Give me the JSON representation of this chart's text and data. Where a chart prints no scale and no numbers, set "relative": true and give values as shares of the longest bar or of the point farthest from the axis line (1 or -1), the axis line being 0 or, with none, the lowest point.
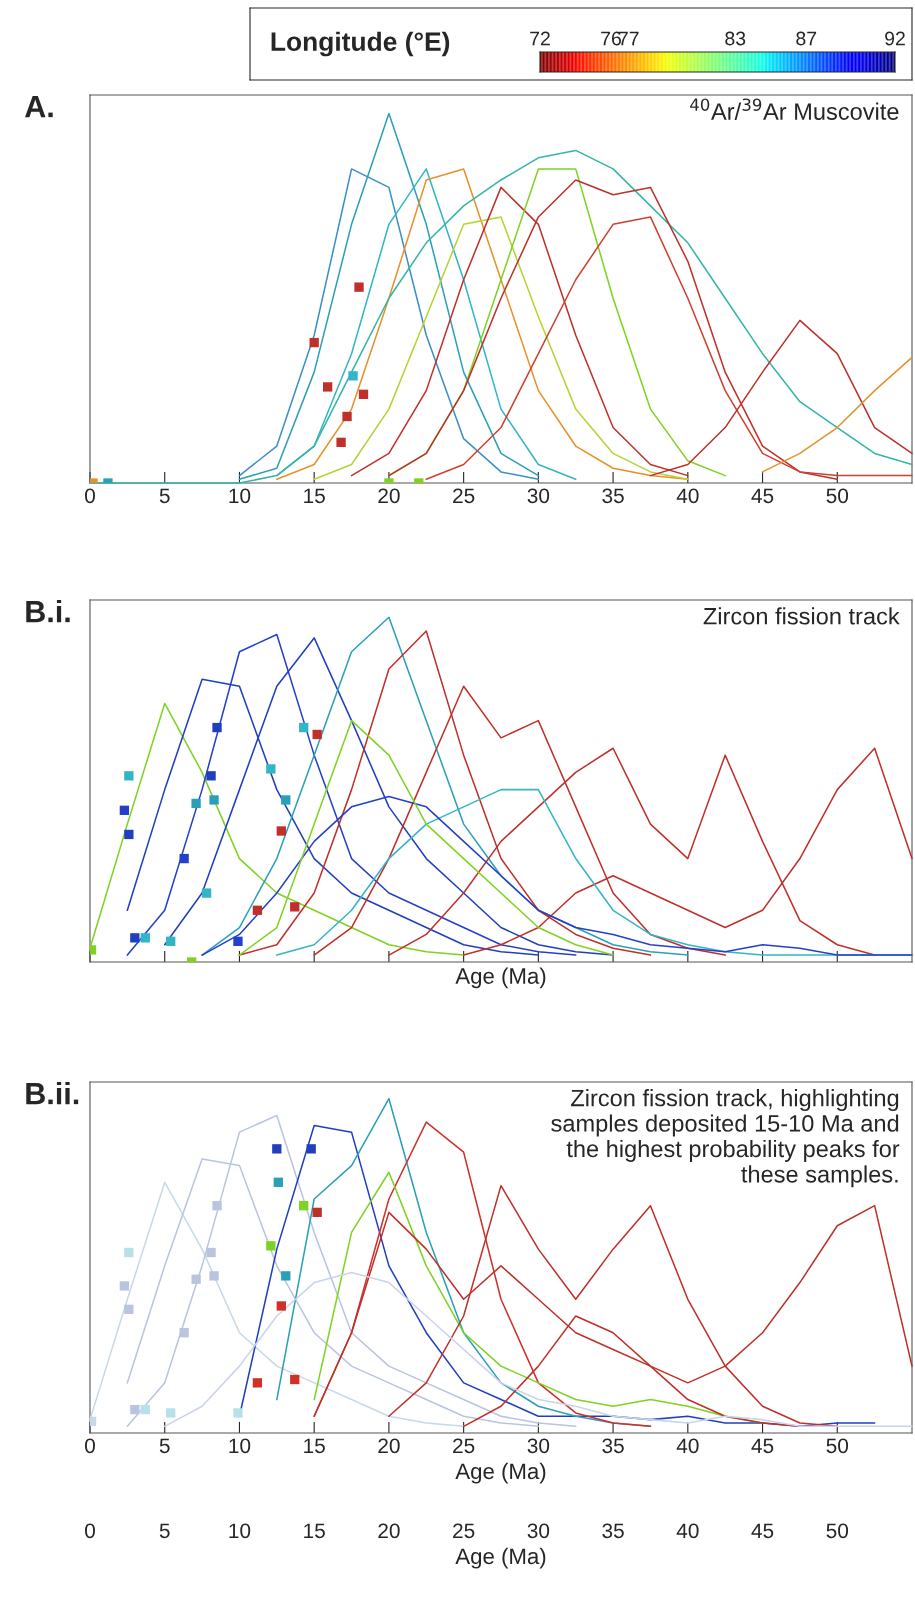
{
  "chart_data": [
    {
      "type": "line",
      "title": "A.",
      "annotations": [
        "$^{40}$Ar/$^{39}$Ar Muscovite"
      ],
      "relative": true,
      "tick_labels": "x",
      "xlim": [
        0,
        55
      ],
      "xticks": [
        0,
        5,
        10,
        15,
        20,
        25,
        30,
        35,
        40,
        45,
        50
      ],
      "clabel": "Longitude (°E)",
      "clim": [
        72,
        92
      ],
      "cticks": [
        72,
        76,
        77,
        83,
        87,
        92
      ],
      "x": [
        0,
        2.5,
        5,
        7.5,
        10,
        12.5,
        15,
        17.5,
        20,
        22.5,
        25,
        27.5,
        30,
        32.5,
        35,
        37.5,
        40,
        42.5,
        45,
        47.5,
        50,
        52.5,
        55
      ],
      "series": [
        {
          "color": "#2aa0b8",
          "values": [
            null,
            null,
            null,
            null,
            0.01,
            0.04,
            0.3,
            0.7,
            1.0,
            0.7,
            0.3,
            0.08,
            0.02,
            null,
            null,
            null,
            null,
            null,
            null,
            null,
            null,
            null,
            null
          ]
        },
        {
          "color": "#3b8fc4",
          "values": [
            null,
            null,
            null,
            null,
            0.02,
            0.1,
            0.4,
            0.85,
            0.8,
            0.4,
            0.12,
            0.03,
            0.01,
            null,
            null,
            null,
            null,
            null,
            null,
            null,
            null,
            null,
            null
          ]
        },
        {
          "color": "#33b5c8",
          "values": [
            null,
            null,
            null,
            null,
            null,
            0.02,
            0.1,
            0.35,
            0.7,
            0.85,
            0.55,
            0.2,
            0.05,
            0.01,
            null,
            null,
            null,
            null,
            null,
            null,
            null,
            null,
            null
          ]
        },
        {
          "color": "#e8902a",
          "values": [
            null,
            null,
            null,
            null,
            null,
            0.01,
            0.05,
            0.2,
            0.5,
            0.82,
            0.85,
            0.55,
            0.25,
            0.1,
            0.04,
            0.02,
            0.01,
            null,
            null,
            null,
            null,
            null,
            null
          ]
        },
        {
          "color": "#b5d334",
          "values": [
            null,
            null,
            null,
            null,
            null,
            null,
            0.01,
            0.05,
            0.2,
            0.45,
            0.7,
            0.72,
            0.45,
            0.2,
            0.08,
            0.03,
            0.01,
            null,
            null,
            null,
            null,
            null,
            null
          ]
        },
        {
          "color": "#c0302a",
          "values": [
            null,
            null,
            null,
            null,
            null,
            null,
            null,
            0.02,
            0.08,
            0.25,
            0.55,
            0.8,
            0.7,
            0.4,
            0.15,
            0.05,
            0.02,
            null,
            null,
            null,
            null,
            null,
            null
          ]
        },
        {
          "color": "#7ed321",
          "values": [
            null,
            null,
            null,
            null,
            null,
            null,
            null,
            null,
            0.02,
            0.08,
            0.25,
            0.55,
            0.85,
            0.85,
            0.5,
            0.2,
            0.06,
            0.02,
            null,
            null,
            null,
            null,
            null
          ]
        },
        {
          "color": "#33b5a8",
          "values": [
            0,
            0,
            0,
            0,
            0,
            0.02,
            0.1,
            0.3,
            0.5,
            0.65,
            0.75,
            0.82,
            0.88,
            0.9,
            0.85,
            0.75,
            0.65,
            0.5,
            0.35,
            0.22,
            0.15,
            0.08,
            0.05
          ]
        },
        {
          "color": "#c0302a",
          "values": [
            null,
            null,
            null,
            null,
            null,
            null,
            null,
            null,
            0.02,
            0.08,
            0.25,
            0.5,
            0.72,
            0.82,
            0.78,
            0.8,
            0.6,
            0.3,
            0.1,
            0.03,
            0.01,
            null,
            null
          ]
        },
        {
          "color": "#d0402f",
          "values": [
            null,
            null,
            null,
            null,
            null,
            null,
            null,
            null,
            null,
            0.01,
            0.05,
            0.15,
            0.35,
            0.55,
            0.7,
            0.72,
            0.5,
            0.25,
            0.08,
            0.03,
            0.02,
            0.02,
            0.02
          ]
        },
        {
          "color": "#c0302a",
          "values": [
            null,
            null,
            null,
            null,
            null,
            null,
            null,
            null,
            null,
            null,
            null,
            null,
            null,
            null,
            null,
            0.02,
            0.05,
            0.15,
            0.3,
            0.44,
            0.35,
            0.15,
            0.08
          ]
        },
        {
          "color": "#e8902a",
          "values": [
            null,
            null,
            null,
            null,
            null,
            null,
            null,
            null,
            null,
            null,
            null,
            null,
            null,
            null,
            null,
            null,
            null,
            null,
            0.03,
            0.08,
            0.15,
            0.25,
            0.34
          ]
        },
        {
          "type": "scatter",
          "marker": "square",
          "x": [
            0.2,
            1.2,
            15,
            15.9,
            16.8,
            18,
            18.3,
            17.2,
            17.6,
            20,
            22
          ],
          "values": [
            0,
            0,
            0.38,
            0.26,
            0.11,
            0.53,
            0.24,
            0.18,
            0.29,
            0,
            0
          ],
          "colors": [
            "#e8902a",
            "#2aa0b8",
            "#c0302a",
            "#c0302a",
            "#c0302a",
            "#c0302a",
            "#c0302a",
            "#c0302a",
            "#33b5c8",
            "#7ed321",
            "#7ed321"
          ]
        }
      ]
    },
    {
      "type": "line",
      "title": "B.i.",
      "annotations": [
        "Zircon fission track"
      ],
      "relative": true,
      "tick_labels": false,
      "xlabel": "Age (Ma)",
      "xlim": [
        0,
        55
      ],
      "xticks": [
        {
          "value": 0,
          "label": null
        },
        {
          "value": 5,
          "label": null
        },
        {
          "value": 10,
          "label": null
        },
        {
          "value": 15,
          "label": null
        },
        {
          "value": 20,
          "label": null
        },
        {
          "value": 25,
          "label": null
        },
        {
          "value": 30,
          "label": null
        },
        {
          "value": 35,
          "label": null
        },
        {
          "value": 40,
          "label": null
        },
        {
          "value": 45,
          "label": null
        },
        {
          "value": 50,
          "label": null
        }
      ],
      "x": [
        0,
        2.5,
        5,
        7.5,
        10,
        12.5,
        15,
        17.5,
        20,
        22.5,
        25,
        27.5,
        30,
        32.5,
        35,
        37.5,
        40,
        42.5,
        45,
        47.5,
        50,
        52.5,
        55
      ],
      "series": [
        {
          "color": "#7ed321",
          "values": [
            0.04,
            0.4,
            0.75,
            0.55,
            0.3,
            0.2,
            0.15,
            0.1,
            0.05,
            0.03,
            0.02,
            null,
            null,
            null,
            null,
            null,
            null,
            null,
            null,
            null,
            null,
            null,
            null
          ]
        },
        {
          "color": "#1f3fbf",
          "values": [
            null,
            0.15,
            0.5,
            0.82,
            0.8,
            0.5,
            0.3,
            0.2,
            0.15,
            0.1,
            0.05,
            0.03,
            0.02,
            null,
            null,
            null,
            null,
            null,
            null,
            null,
            null,
            null,
            null
          ]
        },
        {
          "color": "#2540c8",
          "values": [
            null,
            0.02,
            0.15,
            0.5,
            0.9,
            0.95,
            0.6,
            0.3,
            0.2,
            0.15,
            0.1,
            0.05,
            0.03,
            0.02,
            null,
            null,
            null,
            null,
            null,
            null,
            null,
            null,
            null
          ]
        },
        {
          "color": "#1f3fbf",
          "values": [
            null,
            null,
            0.05,
            0.2,
            0.5,
            0.8,
            0.94,
            0.7,
            0.45,
            0.3,
            0.2,
            0.1,
            0.05,
            0.03,
            0.02,
            null,
            null,
            null,
            null,
            null,
            null,
            null,
            null
          ]
        },
        {
          "color": "#2aa0b8",
          "values": [
            null,
            null,
            null,
            0.02,
            0.1,
            0.3,
            0.6,
            0.9,
            1.0,
            0.7,
            0.4,
            0.25,
            0.15,
            0.1,
            0.05,
            0.03,
            0.02,
            null,
            null,
            null,
            null,
            null,
            null
          ]
        },
        {
          "color": "#c0302a",
          "values": [
            null,
            null,
            null,
            null,
            0.02,
            0.05,
            0.2,
            0.5,
            0.85,
            0.96,
            0.6,
            0.3,
            0.15,
            0.08,
            0.04,
            0.02,
            null,
            null,
            null,
            null,
            null,
            null,
            null
          ]
        },
        {
          "color": "#c0302a",
          "values": [
            null,
            null,
            null,
            null,
            null,
            null,
            0.02,
            0.1,
            0.3,
            0.55,
            0.8,
            0.65,
            0.7,
            0.45,
            0.2,
            0.08,
            0.04,
            0.02,
            null,
            null,
            null,
            null,
            null
          ]
        },
        {
          "color": "#c0302a",
          "values": [
            null,
            null,
            null,
            null,
            null,
            null,
            null,
            null,
            0.02,
            0.08,
            0.2,
            0.35,
            0.45,
            0.55,
            0.62,
            0.4,
            0.3,
            0.6,
            0.35,
            0.12,
            0.05,
            0.02,
            null
          ]
        },
        {
          "color": "#c0302a",
          "values": [
            null,
            null,
            null,
            null,
            null,
            null,
            null,
            null,
            null,
            null,
            0.02,
            0.05,
            0.1,
            0.2,
            0.25,
            0.2,
            0.15,
            0.1,
            0.15,
            0.3,
            0.5,
            0.62,
            0.3
          ]
        },
        {
          "color": "#33b5c8",
          "values": [
            null,
            null,
            null,
            null,
            null,
            0.02,
            0.05,
            0.15,
            0.3,
            0.4,
            0.45,
            0.5,
            0.5,
            0.3,
            0.15,
            0.08,
            0.05,
            0.03,
            0.02,
            0.02,
            0.02,
            0.02,
            0.02
          ]
        },
        {
          "color": "#2540c8",
          "values": [
            null,
            null,
            null,
            0.02,
            0.08,
            0.2,
            0.35,
            0.45,
            0.48,
            0.45,
            0.35,
            0.25,
            0.15,
            0.1,
            0.08,
            0.05,
            0.04,
            0.03,
            0.05,
            0.04,
            0.02,
            0.02,
            0.02
          ]
        },
        {
          "color": "#7ed321",
          "values": [
            null,
            null,
            null,
            null,
            0.02,
            0.1,
            0.4,
            0.7,
            0.6,
            0.4,
            0.3,
            0.2,
            0.1,
            0.05,
            0.02,
            null,
            null,
            null,
            null,
            null,
            null,
            null,
            null
          ]
        },
        {
          "type": "scatter",
          "marker": "square",
          "x": [
            0.1,
            3,
            3.7,
            2.6,
            2.6,
            2.3,
            5.4,
            6.3,
            7.1,
            8.1,
            8.3,
            8.5,
            9.9,
            11.2,
            13.7,
            12.8,
            12.1,
            13.1,
            14.3,
            15.2,
            7.8,
            6.8
          ],
          "values": [
            0.035,
            0.07,
            0.07,
            0.37,
            0.54,
            0.44,
            0.06,
            0.3,
            0.46,
            0.54,
            0.47,
            0.68,
            0.06,
            0.15,
            0.16,
            0.38,
            0.56,
            0.47,
            0.68,
            0.66,
            0.2,
            0
          ],
          "colors": [
            "#7ed321",
            "#1f3fbf",
            "#33b5c8",
            "#1f3fbf",
            "#33b5c8",
            "#2540c8",
            "#33b5c8",
            "#2540c8",
            "#2aa0b8",
            "#1f3fbf",
            "#2aa0b8",
            "#1f3fbf",
            "#2540c8",
            "#c0302a",
            "#c0302a",
            "#c0302a",
            "#33b5c8",
            "#2aa0b8",
            "#33b5c8",
            "#c0302a",
            "#33b5c8",
            "#7ed321"
          ]
        }
      ]
    },
    {
      "type": "line",
      "title": "B.ii.",
      "annotations": [
        "Zircon fission track, highlighting\nsamples deposited 15-10 Ma and\nthe highest probability peaks for\nthese samples."
      ],
      "relative": true,
      "tick_labels": "x",
      "xlabel": "Age (Ma)",
      "xlim": [
        0,
        55
      ],
      "xticks": [
        0,
        5,
        10,
        15,
        20,
        25,
        30,
        35,
        40,
        45,
        50
      ],
      "x2label": "Age (Ma)",
      "x2lim": [
        0,
        55
      ],
      "x2ticks": [
        0,
        5,
        10,
        15,
        20,
        25,
        30,
        35,
        40,
        45,
        50
      ],
      "x": [
        0,
        2.5,
        5,
        7.5,
        10,
        12.5,
        15,
        17.5,
        20,
        22.5,
        25,
        27.5,
        30,
        32.5,
        35,
        37.5,
        40,
        42.5,
        45,
        47.5,
        50,
        52.5,
        55
      ],
      "series": [
        {
          "color": "#c6d9e8",
          "values": [
            0.04,
            0.4,
            0.75,
            0.55,
            0.3,
            0.2,
            0.15,
            0.1,
            0.05,
            0.03,
            0.02,
            null,
            null,
            null,
            null,
            null,
            null,
            null,
            null,
            null,
            null,
            null,
            null
          ]
        },
        {
          "color": "#b8c4e0",
          "values": [
            null,
            0.15,
            0.5,
            0.82,
            0.8,
            0.5,
            0.3,
            0.2,
            0.15,
            0.1,
            0.05,
            0.03,
            0.02,
            null,
            null,
            null,
            null,
            null,
            null,
            null,
            null,
            null,
            null
          ]
        },
        {
          "color": "#b8c4e0",
          "values": [
            null,
            0.02,
            0.15,
            0.5,
            0.9,
            0.95,
            0.6,
            0.3,
            0.2,
            0.15,
            0.1,
            0.05,
            0.03,
            0.02,
            null,
            null,
            null,
            null,
            null,
            null,
            null,
            null,
            null
          ]
        },
        {
          "color": "#1f3fbf",
          "values": [
            null,
            null,
            null,
            null,
            0.05,
            0.55,
            0.92,
            0.9,
            0.5,
            0.3,
            0.15,
            0.1,
            0.05,
            0.05,
            0.05,
            0.04,
            0.05,
            0.03,
            0.03,
            0.02,
            0.03,
            0.03,
            null
          ]
        },
        {
          "color": "#2aa0b8",
          "values": [
            null,
            null,
            null,
            null,
            null,
            0.1,
            0.7,
            0.8,
            1.0,
            0.6,
            0.3,
            0.15,
            0.08,
            0.05,
            0.03,
            0.02,
            null,
            null,
            null,
            null,
            null,
            null,
            null
          ]
        },
        {
          "color": "#d0302a",
          "values": [
            null,
            null,
            null,
            null,
            null,
            null,
            0.05,
            0.3,
            0.7,
            0.93,
            0.84,
            0.4,
            0.15,
            0.06,
            0.03,
            0.02,
            null,
            null,
            null,
            null,
            null,
            null,
            null
          ]
        },
        {
          "color": "#7ed321",
          "values": [
            null,
            null,
            null,
            null,
            null,
            null,
            0.1,
            0.6,
            0.78,
            0.5,
            0.3,
            0.2,
            0.15,
            0.1,
            0.08,
            0.1,
            0.08,
            0.05,
            0.03,
            null,
            null,
            null,
            null
          ]
        },
        {
          "color": "#c0302a",
          "values": [
            null,
            null,
            null,
            null,
            null,
            null,
            0.05,
            0.3,
            0.66,
            0.55,
            0.4,
            0.5,
            0.4,
            0.3,
            0.25,
            0.2,
            0.1,
            0.05,
            0.03,
            0.02,
            null,
            null,
            null
          ]
        },
        {
          "color": "#c0302a",
          "values": [
            null,
            null,
            null,
            null,
            null,
            null,
            null,
            null,
            0.05,
            0.15,
            0.35,
            0.74,
            0.55,
            0.4,
            0.55,
            0.68,
            0.4,
            0.2,
            0.08,
            0.03,
            0.02,
            null,
            null
          ]
        },
        {
          "color": "#c0302a",
          "values": [
            null,
            null,
            null,
            null,
            null,
            null,
            null,
            null,
            null,
            null,
            0.02,
            0.08,
            0.2,
            0.35,
            0.3,
            0.2,
            0.15,
            0.2,
            0.3,
            0.45,
            0.62,
            0.68,
            0.2
          ]
        },
        {
          "color": "#c8d4ea",
          "values": [
            null,
            null,
            0.02,
            0.08,
            0.2,
            0.35,
            0.45,
            0.48,
            0.45,
            0.35,
            0.25,
            0.15,
            0.1,
            0.08,
            0.05,
            0.04,
            0.03,
            0.05,
            0.04,
            0.02,
            0.02,
            0.02,
            0.02
          ]
        },
        {
          "type": "scatter",
          "marker": "square",
          "x": [
            0.1,
            3,
            3.7,
            2.6,
            2.6,
            2.3,
            5.4,
            6.3,
            7.1,
            8.1,
            8.3,
            8.5,
            9.9,
            11.2,
            13.7,
            12.8,
            12.1,
            13.1,
            14.3,
            15.2,
            12.5,
            12.6,
            14.8
          ],
          "values": [
            0.035,
            0.07,
            0.07,
            0.37,
            0.54,
            0.44,
            0.06,
            0.3,
            0.46,
            0.54,
            0.47,
            0.68,
            0.06,
            0.15,
            0.16,
            0.38,
            0.56,
            0.47,
            0.68,
            0.66,
            0.85,
            0.75,
            0.85
          ],
          "colors": [
            "#c6d9e8",
            "#b8c4e0",
            "#b8e0e8",
            "#b8c4e0",
            "#b8e0e8",
            "#b8c4e0",
            "#b8e0e8",
            "#b8c4e0",
            "#b8c4e0",
            "#b8c4e0",
            "#b8c4e0",
            "#b8c4e0",
            "#b8e0e8",
            "#d0302a",
            "#d0302a",
            "#d0302a",
            "#7ed321",
            "#2aa0b8",
            "#7ed321",
            "#c0302a",
            "#1f3fbf",
            "#2aa0b8",
            "#1f3fbf"
          ]
        }
      ]
    }
  ]
}
